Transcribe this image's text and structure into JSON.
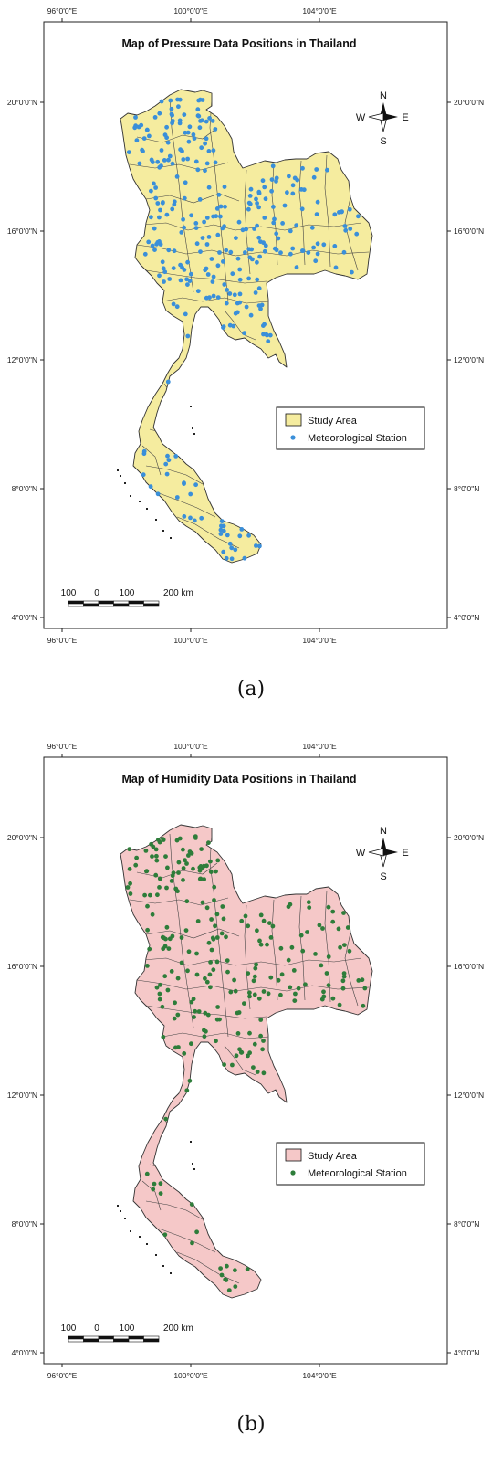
{
  "panels": [
    {
      "id": "a",
      "title": "Map of Pressure Data Positions in Thailand",
      "caption": "(a)",
      "land_color": "#f5ec9f",
      "station_color": "#3a8fd9",
      "legend": {
        "area_label": "Study Area",
        "station_label": "Meteorological Station"
      },
      "station_count": 330
    },
    {
      "id": "b",
      "title": "Map of Humidity Data Positions in Thailand",
      "caption": "(b)",
      "land_color": "#f5c8c8",
      "station_color": "#2e7d3a",
      "legend": {
        "area_label": "Study Area",
        "station_label": "Meteorological Station"
      },
      "station_count": 260
    }
  ],
  "grid": {
    "lon_labels": [
      "96°0'0\"E",
      "100°0'0\"E",
      "104°0'0\"E"
    ],
    "lat_labels": [
      "20°0'0\"N",
      "16°0'0\"N",
      "12°0'0\"N",
      "8°0'0\"N",
      "4°0'0\"N"
    ]
  },
  "north_arrow": {
    "n": "N",
    "s": "S",
    "e": "E",
    "w": "W",
    "icon": "compass-rose-icon"
  },
  "scalebar": {
    "labels": [
      "100",
      "0",
      "100",
      "200 km"
    ]
  }
}
